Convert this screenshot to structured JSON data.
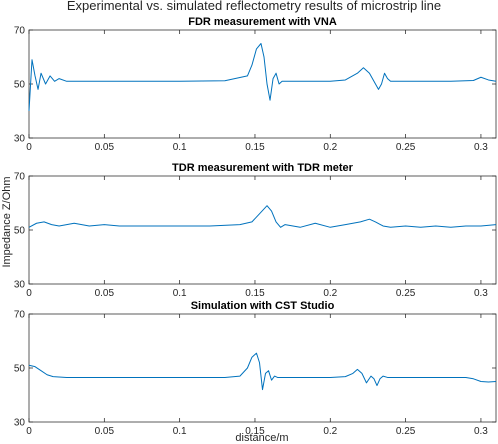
{
  "chart_data": {
    "type": "line",
    "title": "Experimental vs. simulated reflectometry results of microstrip line",
    "xlabel": "distance/m",
    "ylabel": "Impedance Z/Ohm",
    "line_color": "#0072BD",
    "grid": false,
    "panels": [
      {
        "title": "FDR measurement with VNA",
        "xlim": [
          0,
          0.31
        ],
        "ylim": [
          30,
          70
        ],
        "xticks": [
          "0",
          "0.05",
          "0.1",
          "0.15",
          "0.2",
          "0.25",
          "0.3"
        ],
        "yticks": [
          "30",
          "50",
          "70"
        ],
        "series": [
          {
            "x": [
              0,
              0.002,
              0.004,
              0.006,
              0.008,
              0.011,
              0.014,
              0.017,
              0.02,
              0.025,
              0.03,
              0.05,
              0.1,
              0.13,
              0.145,
              0.148,
              0.151,
              0.154,
              0.156,
              0.158,
              0.16,
              0.162,
              0.164,
              0.166,
              0.168,
              0.17,
              0.175,
              0.2,
              0.21,
              0.218,
              0.222,
              0.226,
              0.23,
              0.232,
              0.234,
              0.236,
              0.238,
              0.24,
              0.245,
              0.25,
              0.28,
              0.295,
              0.3,
              0.305,
              0.31
            ],
            "y": [
              40,
              59,
              53,
              48,
              54,
              50,
              53,
              51,
              52,
              51,
              51,
              51,
              51,
              51.2,
              53,
              57,
              63,
              65,
              60,
              50,
              44,
              52,
              54,
              50,
              51,
              51,
              51,
              51,
              51.5,
              54,
              56,
              54,
              50,
              48,
              50,
              54,
              52,
              51,
              51,
              51,
              51,
              51.3,
              52.5,
              51.5,
              51
            ]
          }
        ]
      },
      {
        "title": "TDR measurement with TDR meter",
        "xlim": [
          0,
          0.31
        ],
        "ylim": [
          30,
          70
        ],
        "xticks": [
          "0",
          "0.05",
          "0.1",
          "0.15",
          "0.2",
          "0.25",
          "0.3"
        ],
        "yticks": [
          "30",
          "50",
          "70"
        ],
        "series": [
          {
            "x": [
              0,
              0.005,
              0.01,
              0.015,
              0.02,
              0.03,
              0.04,
              0.05,
              0.06,
              0.08,
              0.1,
              0.12,
              0.14,
              0.148,
              0.153,
              0.158,
              0.161,
              0.164,
              0.167,
              0.17,
              0.18,
              0.19,
              0.2,
              0.21,
              0.22,
              0.226,
              0.23,
              0.235,
              0.24,
              0.25,
              0.26,
              0.27,
              0.28,
              0.29,
              0.3,
              0.31
            ],
            "y": [
              51,
              52.5,
              53,
              52,
              51.5,
              52.5,
              51.5,
              52,
              51.5,
              51.5,
              51.5,
              51.5,
              52,
              53,
              56,
              59,
              57,
              53,
              51,
              52,
              51,
              52.5,
              51,
              52,
              53,
              54,
              53,
              51.5,
              51,
              51.5,
              51,
              51.5,
              51,
              51.5,
              51.5,
              52
            ]
          }
        ]
      },
      {
        "title": "Simulation with CST Studio",
        "xlim": [
          0,
          0.31
        ],
        "ylim": [
          30,
          70
        ],
        "xticks": [
          "0",
          "0.05",
          "0.1",
          "0.15",
          "0.2",
          "0.25",
          "0.3"
        ],
        "yticks": [
          "30",
          "50",
          "70"
        ],
        "series": [
          {
            "x": [
              0,
              0.004,
              0.008,
              0.012,
              0.016,
              0.025,
              0.05,
              0.1,
              0.13,
              0.14,
              0.145,
              0.148,
              0.151,
              0.153,
              0.155,
              0.157,
              0.159,
              0.161,
              0.163,
              0.165,
              0.17,
              0.2,
              0.21,
              0.215,
              0.218,
              0.221,
              0.224,
              0.227,
              0.229,
              0.231,
              0.233,
              0.235,
              0.238,
              0.25,
              0.29,
              0.295,
              0.3,
              0.305,
              0.31
            ],
            "y": [
              51,
              50.5,
              49,
              47.5,
              46.8,
              46.5,
              46.5,
              46.5,
              46.5,
              47,
              50,
              54,
              55.5,
              52,
              42,
              48,
              49,
              45.5,
              47,
              46.5,
              46.5,
              46.5,
              46.8,
              48,
              49.5,
              48,
              44.5,
              47,
              46,
              43.5,
              46,
              47,
              46.5,
              46.5,
              46.5,
              46,
              45,
              44.8,
              45
            ]
          }
        ]
      }
    ]
  }
}
